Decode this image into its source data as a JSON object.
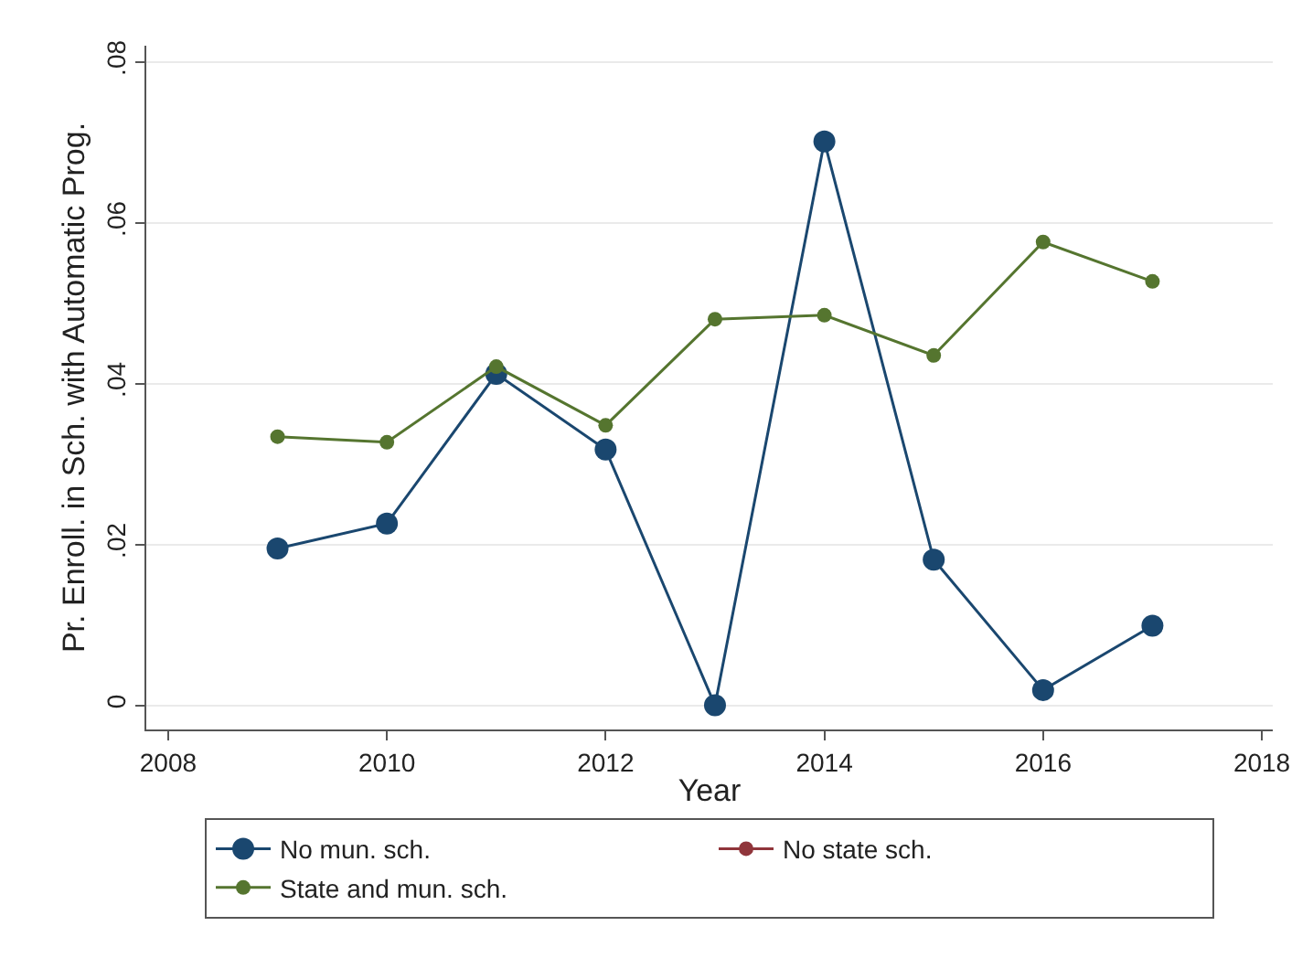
{
  "chart_data": {
    "type": "line",
    "xlabel": "Year",
    "ylabel": "Pr. Enroll. in Sch. with Automatic Prog.",
    "x": [
      2009,
      2010,
      2011,
      2012,
      2013,
      2014,
      2015,
      2016,
      2017
    ],
    "series": [
      {
        "name": "No mun. sch.",
        "color": "#1a476f",
        "values": [
          0.0195,
          0.0226,
          0.0412,
          0.0318,
          0.0,
          0.0701,
          0.0181,
          0.0019,
          0.0099
        ]
      },
      {
        "name": "No state sch.",
        "color": "#90353b",
        "values": [
          null,
          null,
          null,
          null,
          null,
          null,
          null,
          null,
          null
        ]
      },
      {
        "name": "State and mun. sch.",
        "color": "#55752f",
        "values": [
          0.0334,
          0.0327,
          0.0421,
          0.0348,
          0.048,
          0.0485,
          0.0435,
          0.0576,
          0.0527
        ]
      }
    ],
    "xlim": [
      2007.8,
      2018.1
    ],
    "xticks": [
      2008,
      2010,
      2012,
      2014,
      2016,
      2018
    ],
    "ylim": [
      -0.003,
      0.082
    ],
    "yticks": [
      {
        "value": 0,
        "label": "0"
      },
      {
        "value": 0.02,
        "label": ".02"
      },
      {
        "value": 0.04,
        "label": ".04"
      },
      {
        "value": 0.06,
        "label": ".06"
      },
      {
        "value": 0.08,
        "label": ".08"
      }
    ],
    "grid": "y",
    "legend": "bottom",
    "marker": "circle",
    "line_style": "solid"
  }
}
